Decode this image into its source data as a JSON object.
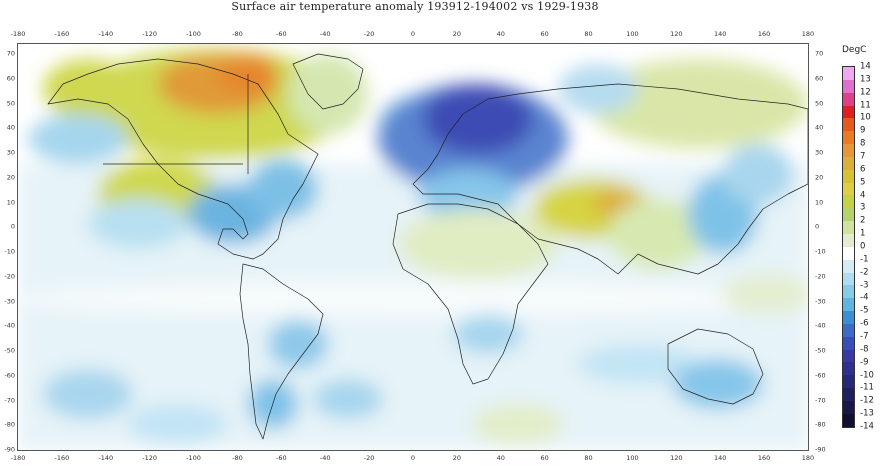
{
  "title": "Surface air temperature anomaly 193912-194002 vs 1929-1938",
  "x_ticks": [
    "-180",
    "-160",
    "-140",
    "-120",
    "-100",
    "-80",
    "-60",
    "-40",
    "-20",
    "0",
    "20",
    "40",
    "60",
    "80",
    "100",
    "120",
    "140",
    "160",
    "180"
  ],
  "y_ticks": [
    "70",
    "60",
    "50",
    "40",
    "30",
    "20",
    "10",
    "0",
    "-10",
    "-20",
    "-30",
    "-40",
    "-50",
    "-60",
    "-70",
    "-80",
    "-90"
  ],
  "legend": {
    "title": "DegC",
    "levels": [
      "14",
      "13",
      "12",
      "11",
      "10",
      "9",
      "8",
      "7",
      "6",
      "5",
      "4",
      "3",
      "2",
      "1",
      "0",
      "-1",
      "-2",
      "-3",
      "-4",
      "-5",
      "-6",
      "-7",
      "-8",
      "-9",
      "-10",
      "-11",
      "-12",
      "-13",
      "-14"
    ],
    "colors": [
      "#f0a8f0",
      "#e070d0",
      "#e0408a",
      "#e02020",
      "#e65a1e",
      "#ec7a24",
      "#e8963a",
      "#dcae3c",
      "#d6c232",
      "#dccf46",
      "#c4d24a",
      "#b4d36a",
      "#cfe2a0",
      "#e4ecd0",
      "#ffffff",
      "#d6ecf4",
      "#aeddf0",
      "#86cbe8",
      "#5fb4e0",
      "#3e8ed4",
      "#3c6cc8",
      "#3a4eba",
      "#3a3aa6",
      "#30308e",
      "#282878",
      "#202060",
      "#181848",
      "#101030"
    ]
  }
}
